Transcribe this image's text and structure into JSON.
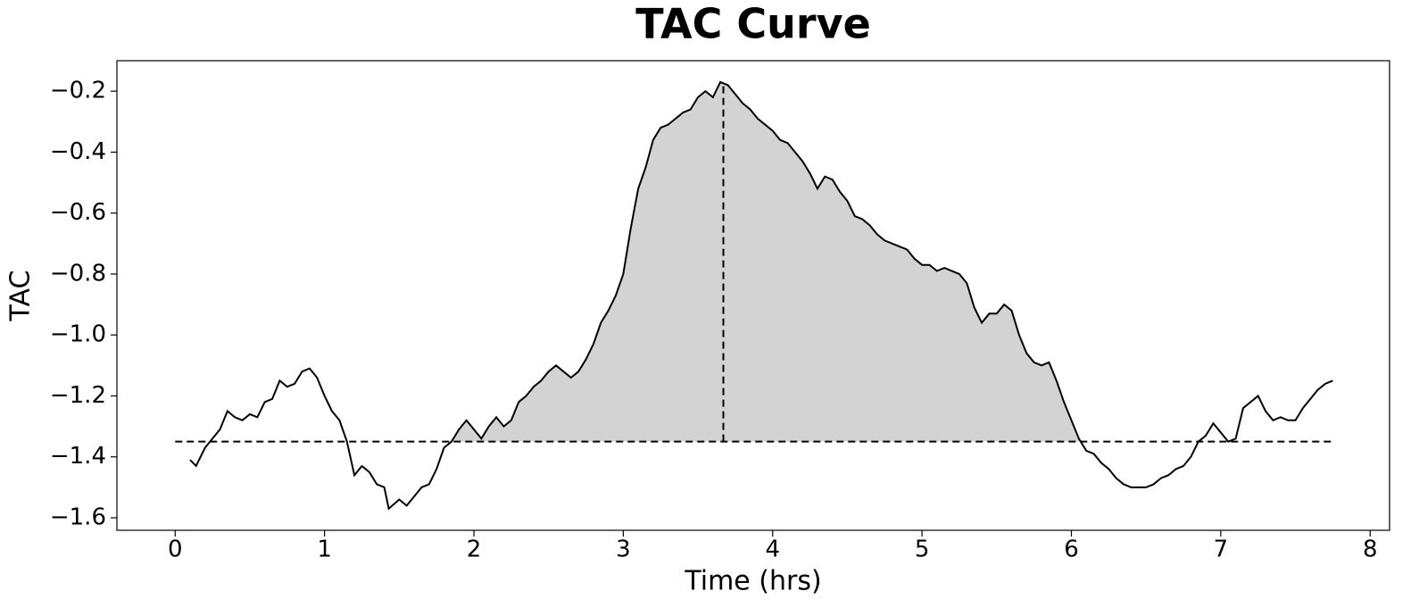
{
  "chart_data": {
    "type": "line",
    "title": "TAC Curve",
    "xlabel": "Time (hrs)",
    "ylabel": "TAC",
    "x": [
      0.1,
      0.14,
      0.2,
      0.25,
      0.3,
      0.35,
      0.4,
      0.45,
      0.5,
      0.55,
      0.6,
      0.65,
      0.7,
      0.75,
      0.8,
      0.85,
      0.9,
      0.95,
      1.0,
      1.05,
      1.1,
      1.15,
      1.2,
      1.25,
      1.3,
      1.35,
      1.4,
      1.43,
      1.5,
      1.55,
      1.6,
      1.65,
      1.7,
      1.75,
      1.8,
      1.85,
      1.9,
      1.95,
      2.0,
      2.05,
      2.1,
      2.15,
      2.2,
      2.25,
      2.3,
      2.35,
      2.4,
      2.45,
      2.5,
      2.55,
      2.6,
      2.65,
      2.7,
      2.75,
      2.8,
      2.85,
      2.9,
      2.95,
      3.0,
      3.05,
      3.1,
      3.15,
      3.2,
      3.25,
      3.3,
      3.35,
      3.4,
      3.45,
      3.5,
      3.55,
      3.6,
      3.65,
      3.7,
      3.75,
      3.8,
      3.85,
      3.9,
      3.95,
      4.0,
      4.05,
      4.1,
      4.15,
      4.2,
      4.25,
      4.3,
      4.35,
      4.4,
      4.45,
      4.5,
      4.55,
      4.6,
      4.65,
      4.7,
      4.75,
      4.8,
      4.85,
      4.9,
      4.95,
      5.0,
      5.05,
      5.1,
      5.15,
      5.2,
      5.25,
      5.3,
      5.35,
      5.4,
      5.45,
      5.5,
      5.55,
      5.6,
      5.65,
      5.7,
      5.75,
      5.8,
      5.85,
      5.9,
      5.95,
      6.0,
      6.05,
      6.1,
      6.15,
      6.2,
      6.25,
      6.3,
      6.35,
      6.4,
      6.45,
      6.5,
      6.55,
      6.6,
      6.65,
      6.7,
      6.75,
      6.8,
      6.85,
      6.9,
      6.95,
      7.0,
      7.05,
      7.1,
      7.15,
      7.2,
      7.25,
      7.3,
      7.35,
      7.4,
      7.45,
      7.5,
      7.55,
      7.6,
      7.65,
      7.7,
      7.75
    ],
    "series": [
      {
        "color": "#000000",
        "values": [
          -1.41,
          -1.43,
          -1.37,
          -1.34,
          -1.31,
          -1.25,
          -1.27,
          -1.28,
          -1.26,
          -1.27,
          -1.22,
          -1.21,
          -1.15,
          -1.17,
          -1.16,
          -1.12,
          -1.11,
          -1.14,
          -1.2,
          -1.25,
          -1.28,
          -1.35,
          -1.46,
          -1.43,
          -1.45,
          -1.49,
          -1.5,
          -1.57,
          -1.54,
          -1.56,
          -1.53,
          -1.5,
          -1.49,
          -1.44,
          -1.37,
          -1.35,
          -1.31,
          -1.28,
          -1.31,
          -1.34,
          -1.3,
          -1.27,
          -1.3,
          -1.28,
          -1.22,
          -1.2,
          -1.17,
          -1.15,
          -1.12,
          -1.1,
          -1.12,
          -1.14,
          -1.12,
          -1.08,
          -1.03,
          -0.96,
          -0.92,
          -0.87,
          -0.8,
          -0.65,
          -0.52,
          -0.45,
          -0.36,
          -0.32,
          -0.31,
          -0.29,
          -0.27,
          -0.26,
          -0.22,
          -0.2,
          -0.22,
          -0.17,
          -0.18,
          -0.21,
          -0.24,
          -0.26,
          -0.29,
          -0.31,
          -0.33,
          -0.36,
          -0.37,
          -0.4,
          -0.43,
          -0.47,
          -0.52,
          -0.48,
          -0.49,
          -0.53,
          -0.56,
          -0.61,
          -0.62,
          -0.64,
          -0.67,
          -0.69,
          -0.7,
          -0.71,
          -0.72,
          -0.75,
          -0.77,
          -0.77,
          -0.79,
          -0.78,
          -0.79,
          -0.8,
          -0.83,
          -0.91,
          -0.96,
          -0.93,
          -0.93,
          -0.9,
          -0.92,
          -1.0,
          -1.06,
          -1.09,
          -1.1,
          -1.09,
          -1.15,
          -1.22,
          -1.28,
          -1.34,
          -1.38,
          -1.39,
          -1.42,
          -1.44,
          -1.47,
          -1.49,
          -1.5,
          -1.5,
          -1.5,
          -1.49,
          -1.47,
          -1.46,
          -1.44,
          -1.43,
          -1.4,
          -1.35,
          -1.33,
          -1.29,
          -1.32,
          -1.35,
          -1.34,
          -1.24,
          -1.22,
          -1.2,
          -1.25,
          -1.28,
          -1.27,
          -1.28,
          -1.28,
          -1.24,
          -1.21,
          -1.18,
          -1.16,
          -1.15
        ]
      }
    ],
    "baseline": -1.35,
    "baseline_x": [
      0,
      7.75
    ],
    "peak": {
      "x": 3.67,
      "y": -0.17
    },
    "fill_range": [
      1.8,
      6.1
    ],
    "fill_color": "#d3d3d3",
    "xlim": [
      -0.39,
      8.13
    ],
    "xticks": [
      0,
      1,
      2,
      3,
      4,
      5,
      6,
      7,
      8
    ],
    "ylim": [
      -1.641,
      -0.1
    ],
    "yticks": [
      {
        "value": -0.2,
        "label": "−0.2"
      },
      {
        "value": -0.4,
        "label": "−0.4"
      },
      {
        "value": -0.6,
        "label": "−0.6"
      },
      {
        "value": -0.8,
        "label": "−0.8"
      },
      {
        "value": -1.0,
        "label": "−1.0"
      },
      {
        "value": -1.2,
        "label": "−1.2"
      },
      {
        "value": -1.4,
        "label": "−1.4"
      },
      {
        "value": -1.6,
        "label": "−1.6"
      }
    ],
    "grid": false
  }
}
